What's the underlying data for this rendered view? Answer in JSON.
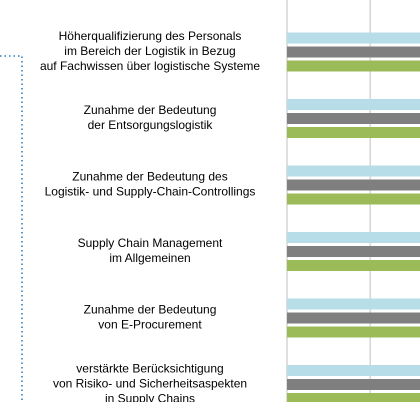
{
  "chart_data": {
    "type": "barh",
    "categories": [
      [
        "Höherqualifizierung des Personals",
        "im Bereich der Logistik in Bezug",
        "auf Fachwissen über logistische Systeme"
      ],
      [
        "Zunahme der Bedeutung",
        "der Entsorgungslogistik"
      ],
      [
        "Zunahme der Bedeutung des",
        "Logistik- und Supply-Chain-Controllings"
      ],
      [
        "Supply Chain Management",
        "im Allgemeinen"
      ],
      [
        "Zunahme der Bedeutung",
        "von E-Procurement"
      ],
      [
        "verstärkte Berücksichtigung",
        "von Risiko- und Sicherheitsaspekten",
        "in Supply Chains"
      ]
    ],
    "series": [
      {
        "color": "#b7dde8",
        "values": [
          2,
          2,
          2,
          2,
          2,
          2
        ]
      },
      {
        "color": "#7f7f7f",
        "values": [
          2,
          2,
          2,
          2,
          2,
          2
        ]
      },
      {
        "color": "#9bbb59",
        "values": [
          2,
          2,
          2,
          2,
          2,
          2
        ]
      }
    ],
    "xlim": [
      0,
      1.6
    ],
    "xticks": [
      0,
      1
    ],
    "grid": true
  }
}
